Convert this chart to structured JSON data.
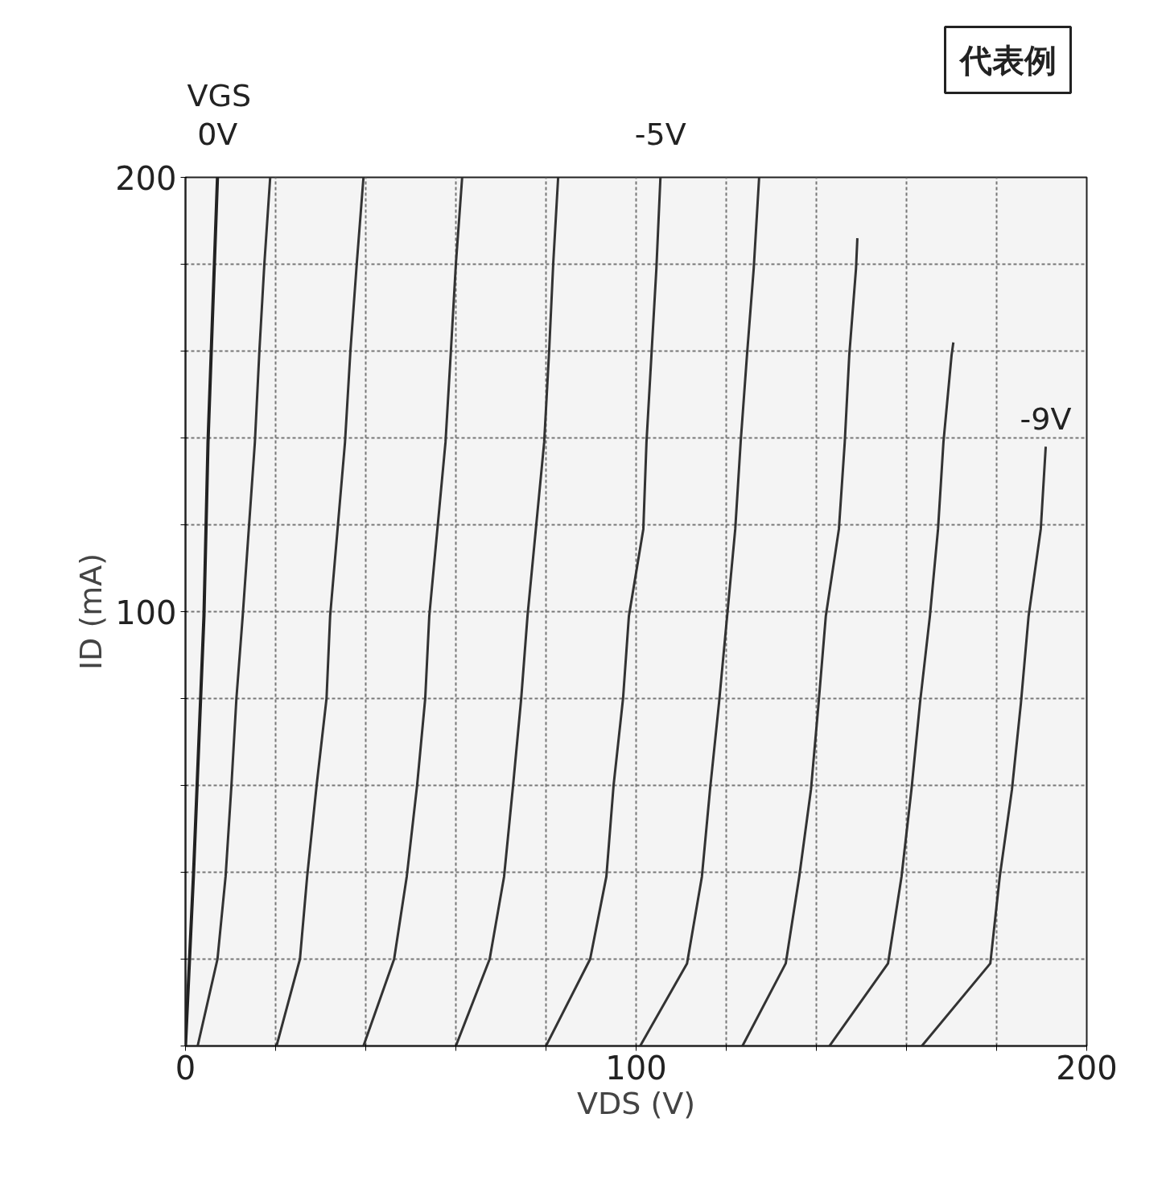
{
  "chart_data": {
    "type": "line",
    "xlabel": "VDS (V)",
    "ylabel": "ID (mA)",
    "annotations": [
      "VGS",
      "代表例"
    ],
    "xlim": [
      0,
      200
    ],
    "ylim": [
      0,
      200
    ],
    "xticks": [
      0,
      {
        "value": 20,
        "label": null
      },
      {
        "value": 40,
        "label": null
      },
      {
        "value": 60,
        "label": null
      },
      {
        "value": 80,
        "label": null
      },
      100,
      {
        "value": 120,
        "label": null
      },
      {
        "value": 140,
        "label": null
      },
      {
        "value": 160,
        "label": null
      },
      {
        "value": 180,
        "label": null
      },
      200
    ],
    "yticks": [
      {
        "value": 0,
        "label": null
      },
      {
        "value": 20,
        "label": null
      },
      {
        "value": 40,
        "label": null
      },
      {
        "value": 60,
        "label": null
      },
      {
        "value": 80,
        "label": null
      },
      100,
      {
        "value": 120,
        "label": null
      },
      {
        "value": 140,
        "label": null
      },
      {
        "value": 160,
        "label": null
      },
      {
        "value": 180,
        "label": null
      },
      200
    ],
    "grid": true,
    "marker": "none",
    "line_style": "solid",
    "series": [
      {
        "name": "0V",
        "color": "#222222",
        "x": [
          0,
          1.8,
          4.1,
          5,
          7.1
        ],
        "values": [
          0,
          40,
          99,
          139,
          200
        ]
      },
      {
        "color": "#333333",
        "x": [
          2.7,
          7.1,
          8.9,
          10.2,
          11.3,
          12.7,
          15.4,
          16.4,
          17.5,
          18.8
        ],
        "values": [
          0,
          20,
          39,
          60,
          80,
          99,
          139,
          160,
          180,
          200
        ]
      },
      {
        "color": "#333333",
        "x": [
          20.2,
          25.4,
          27,
          29.1,
          31.3,
          32.1,
          35.4,
          36.6,
          38,
          39.5
        ],
        "values": [
          0,
          20,
          39,
          60,
          80,
          99,
          139,
          160,
          180,
          200
        ]
      },
      {
        "color": "#333333",
        "x": [
          39.5,
          46.3,
          49.1,
          51.4,
          53.2,
          54.1,
          57.7,
          58.9,
          60,
          61.4
        ],
        "values": [
          0,
          20,
          39,
          60,
          80,
          99,
          139,
          160,
          180,
          200
        ]
      },
      {
        "color": "#333333",
        "x": [
          60,
          67.5,
          70.7,
          72.7,
          74.5,
          75.9,
          79.6,
          80.7,
          81.6,
          82.7
        ],
        "values": [
          0,
          20,
          39,
          60,
          80,
          99,
          139,
          160,
          180,
          200
        ]
      },
      {
        "name": "-5V",
        "color": "#333333",
        "x": [
          80,
          89.8,
          93.4,
          95,
          97.1,
          98.4,
          101.6,
          102.3,
          103.4,
          104.5,
          105.4
        ],
        "values": [
          0,
          20,
          39,
          60,
          80,
          99,
          119,
          139,
          159,
          179,
          200
        ]
      },
      {
        "color": "#333333",
        "x": [
          100.9,
          111.3,
          114.6,
          116.4,
          118.4,
          120.2,
          122,
          123.2,
          124.6,
          126.1,
          127.3
        ],
        "values": [
          0,
          19,
          39,
          59,
          79,
          99,
          119,
          139,
          159,
          179,
          200
        ]
      },
      {
        "color": "#333333",
        "x": [
          123.6,
          133.2,
          136.2,
          138.8,
          140.5,
          142.1,
          145,
          146.3,
          147.3,
          148.8,
          149.1
        ],
        "values": [
          0,
          19,
          39,
          59,
          79,
          99,
          119,
          139,
          159,
          179,
          186
        ]
      },
      {
        "color": "#333333",
        "x": [
          142.9,
          155.9,
          158.9,
          161.1,
          163,
          165.2,
          167,
          168.2,
          170,
          170.4
        ],
        "values": [
          0,
          19,
          39,
          59,
          79,
          99,
          119,
          139,
          159,
          162
        ]
      },
      {
        "name": "-9V",
        "color": "#333333",
        "x": [
          163.4,
          178.6,
          180.7,
          183.4,
          185.4,
          187.1,
          189.8,
          190.9
        ],
        "values": [
          0,
          19,
          39,
          59,
          79,
          99,
          119,
          138
        ]
      }
    ]
  }
}
